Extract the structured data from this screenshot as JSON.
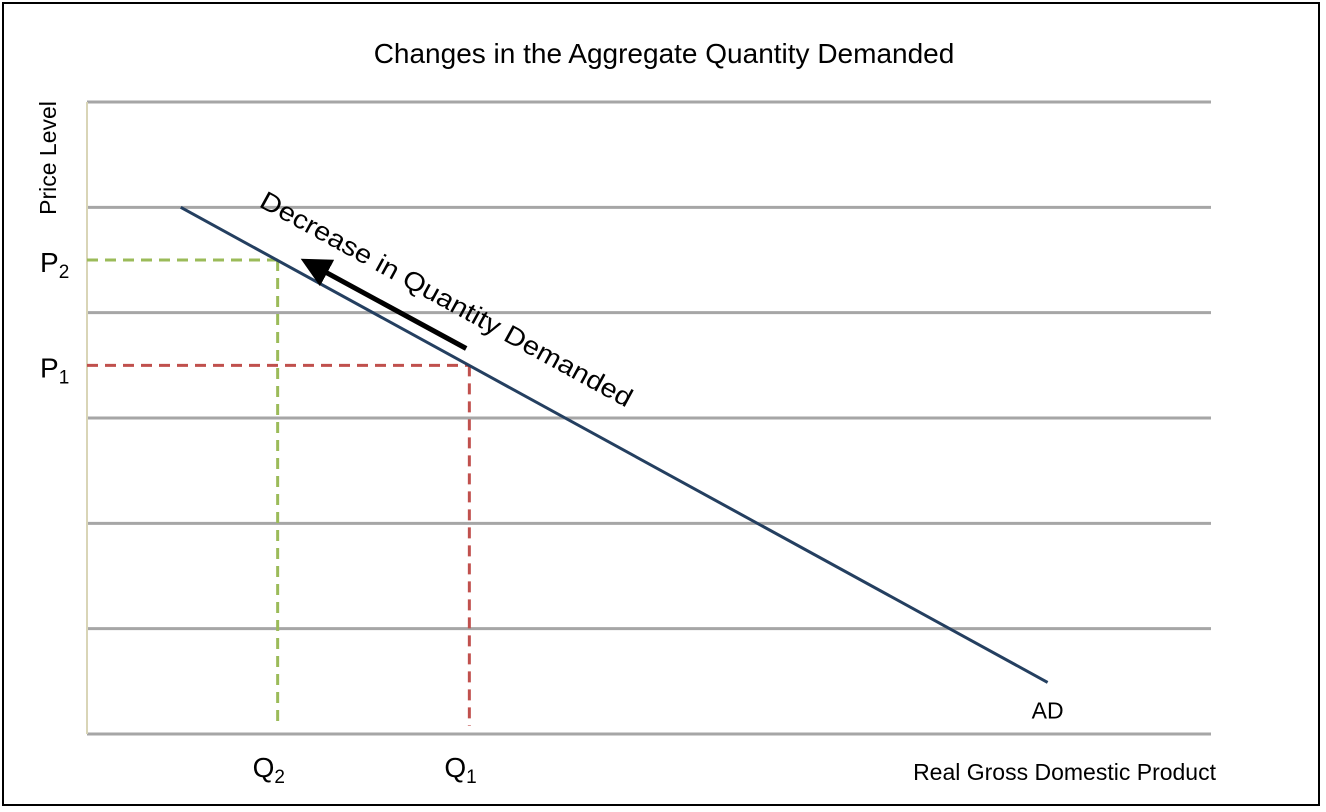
{
  "chart_data": {
    "type": "line",
    "title": "Changes in the Aggregate Quantity Demanded",
    "xlabel": "Real Gross Domestic Product",
    "ylabel": "Price Level",
    "xlim": [
      0,
      10.67
    ],
    "ylim": [
      0,
      6
    ],
    "grid": {
      "horizontal": true,
      "vertical": false,
      "y_values": [
        0,
        1,
        2,
        3,
        4,
        5,
        6
      ]
    },
    "series": [
      {
        "name": "AD",
        "points": [
          [
            0.89,
            5.0
          ],
          [
            9.12,
            0.49
          ]
        ],
        "color": "#243F60"
      }
    ],
    "levels": [
      {
        "price_label": "P",
        "price_sub": "2",
        "quantity_label": "Q",
        "quantity_sub": "2",
        "x": 1.81,
        "y": 4.5,
        "color": "#9BBB59"
      },
      {
        "price_label": "P",
        "price_sub": "1",
        "quantity_label": "Q",
        "quantity_sub": "1",
        "x": 3.63,
        "y": 3.5,
        "color": "#C0504D"
      }
    ],
    "annotation": {
      "text": "Decrease in Quantity Demanded",
      "arrow_from": [
        3.6,
        3.66
      ],
      "arrow_to": [
        2.12,
        4.46
      ],
      "color": "#000000"
    },
    "colors": {
      "grid": "#A6A6A6",
      "axis": "#D9D5B7"
    }
  }
}
